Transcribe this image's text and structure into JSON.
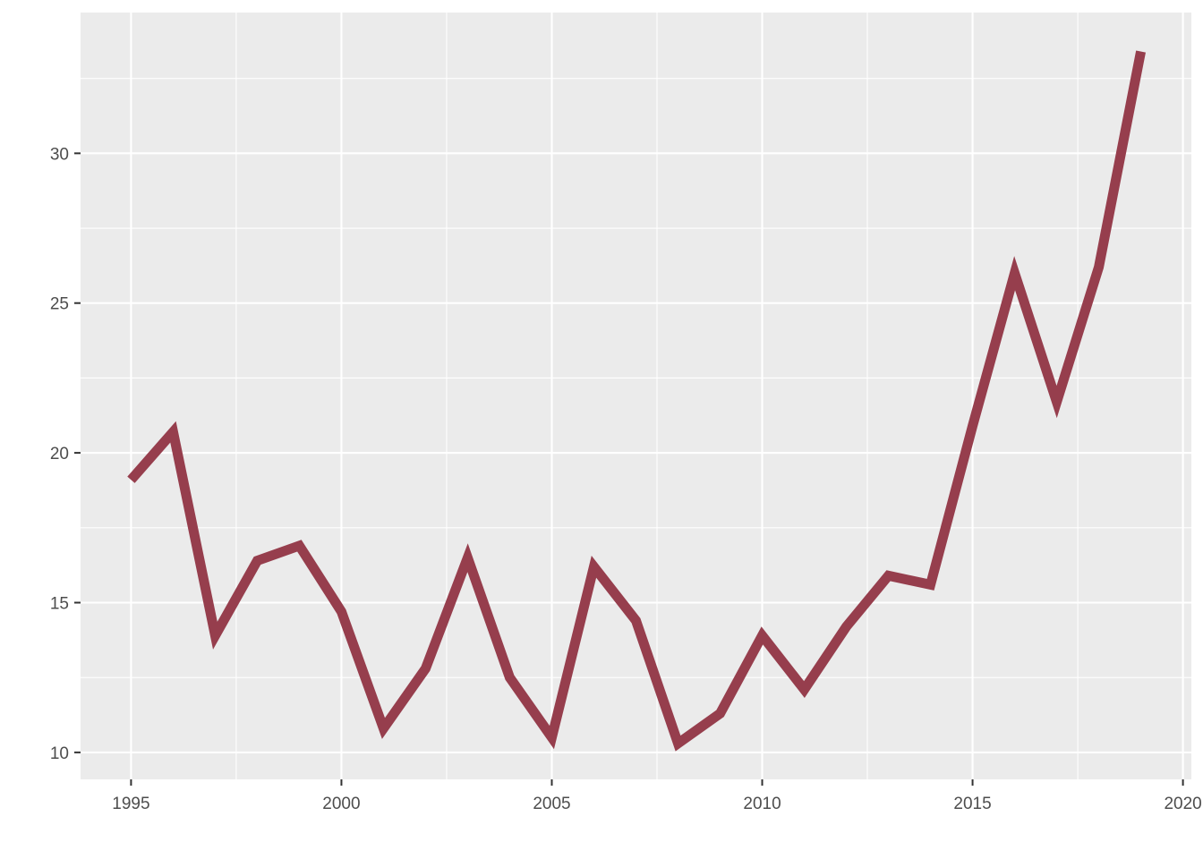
{
  "chart_data": {
    "type": "line",
    "title": "",
    "xlabel": "",
    "ylabel": "",
    "xlim": [
      1993.8,
      2020.2
    ],
    "ylim": [
      9.1,
      34.7
    ],
    "x_ticks": [
      1995,
      2000,
      2005,
      2010,
      2015,
      2020
    ],
    "y_ticks": [
      10,
      15,
      20,
      25,
      30
    ],
    "x_tick_labels": [
      "1995",
      "2000",
      "2005",
      "2010",
      "2015",
      "2020"
    ],
    "y_tick_labels": [
      "10",
      "15",
      "20",
      "25",
      "30"
    ],
    "grid": true,
    "legend": "none",
    "colors": {
      "panel_background": "#ebebeb",
      "grid": "#ffffff",
      "line": "#963e4d",
      "tick_text": "#4d4d4d",
      "tick_mark": "#333333"
    },
    "series": [
      {
        "x": [
          1995,
          1996,
          1997,
          1998,
          1999,
          2000,
          2001,
          2002,
          2003,
          2004,
          2005,
          2006,
          2007,
          2008,
          2009,
          2010,
          2011,
          2012,
          2013,
          2014,
          2015,
          2016,
          2017,
          2018,
          2019
        ],
        "values": [
          19.1,
          20.7,
          13.9,
          16.4,
          16.9,
          14.7,
          10.8,
          12.8,
          16.5,
          12.5,
          10.5,
          16.2,
          14.4,
          10.3,
          11.3,
          13.9,
          12.1,
          14.2,
          15.9,
          15.6,
          20.9,
          26.0,
          21.7,
          26.2,
          33.4
        ]
      }
    ]
  }
}
